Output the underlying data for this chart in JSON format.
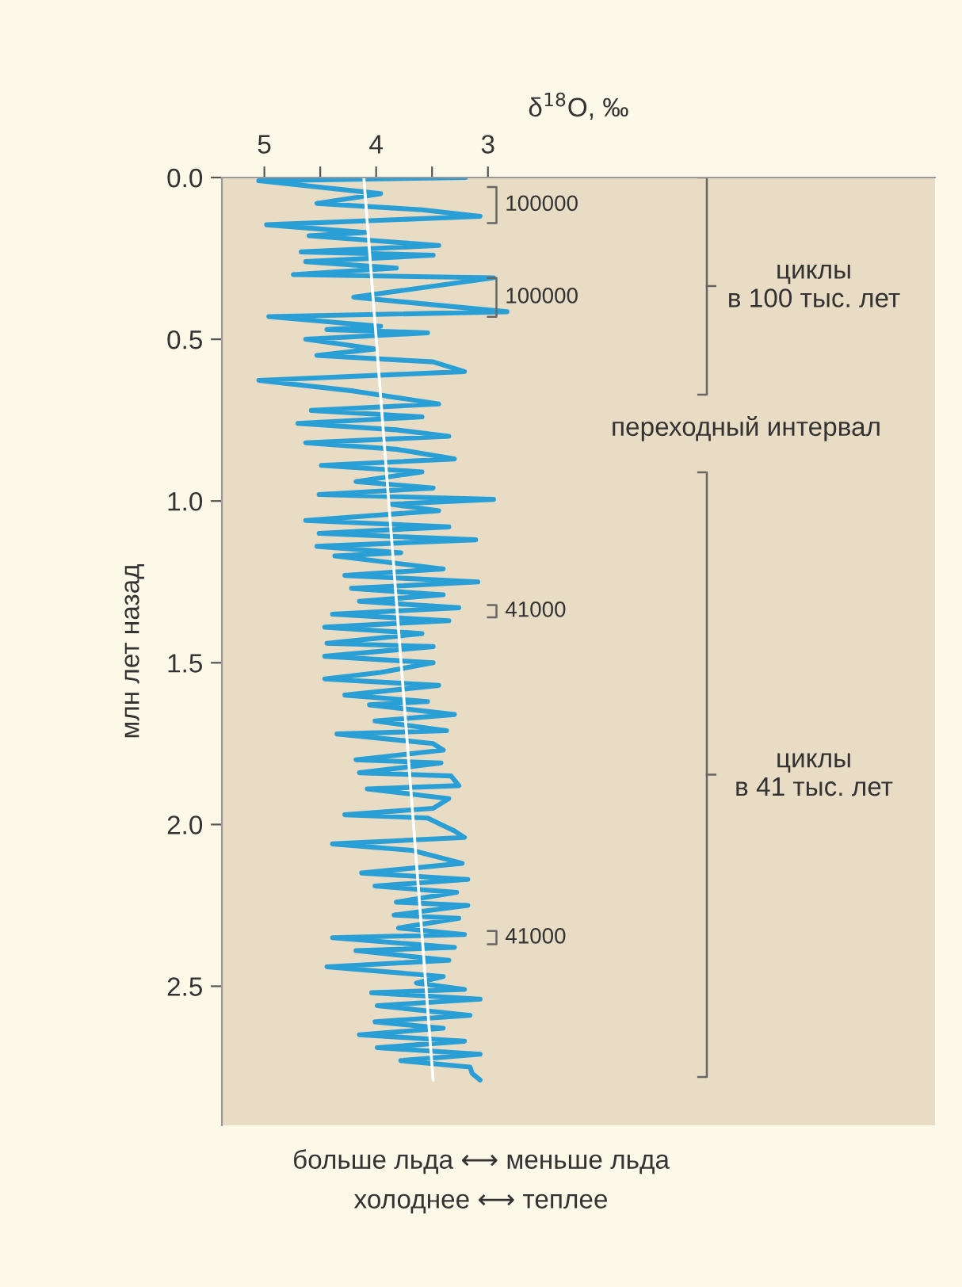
{
  "chart_data": {
    "type": "line",
    "xlabel": "δ$^{18}$O, ‰",
    "ylabel": "млн лет назад",
    "xlim": [
      5.38,
      -1.0
    ],
    "ylim": [
      2.93,
      0
    ],
    "xticks": [
      5,
      {
        "value": 4.5,
        "label": null
      },
      4,
      {
        "value": 3.5,
        "label": null
      },
      3
    ],
    "yticks": [
      {
        "value": 0,
        "label": "0.0"
      },
      {
        "value": 0.5,
        "label": "0.5"
      },
      {
        "value": 1,
        "label": "1.0"
      },
      {
        "value": 1.5,
        "label": "1.5"
      },
      {
        "value": 2,
        "label": "2.0"
      },
      {
        "value": 2.5,
        "label": "2.5"
      }
    ],
    "grid": false,
    "legend": false,
    "marker": "none",
    "line_style": "solid",
    "series": [
      {
        "color": "#2a9fd6",
        "x": [
          3.2,
          5.05,
          3.96,
          4.53,
          3.59,
          3.07,
          4.98,
          4.1,
          4.6,
          3.44,
          4.67,
          3.49,
          4.63,
          3.82,
          4.74,
          2.95,
          4.2,
          2.83,
          4.96,
          3.96,
          4.44,
          3.54,
          4.63,
          4.01,
          4.53,
          3.49,
          3.21,
          5.05,
          4.2,
          3.44,
          4.58,
          3.59,
          4.7,
          3.82,
          3.35,
          4.63,
          3.82,
          3.3,
          4.49,
          3.59,
          4.18,
          3.49,
          4.51,
          2.95,
          3.87,
          3.44,
          4.63,
          3.35,
          4.51,
          3.11,
          4.53,
          3.78,
          4.37,
          3.4,
          4.28,
          3.09,
          4.22,
          3.4,
          4.15,
          3.26,
          4.39,
          3.35,
          4.46,
          3.59,
          4.44,
          3.49,
          4.46,
          3.49,
          3.96,
          4.46,
          3.44,
          4.28,
          3.54,
          4.06,
          3.3,
          4.01,
          3.37,
          4.35,
          3.49,
          3.4,
          4.18,
          3.42,
          4.15,
          3.33,
          3.26,
          4.08,
          3.35,
          3.49,
          4.28,
          3.54,
          3.3,
          3.21,
          4.39,
          3.68,
          3.23,
          4.13,
          3.18,
          4.01,
          3.28,
          3.82,
          3.18,
          3.84,
          3.26,
          3.8,
          3.21,
          4.39,
          3.3,
          4.18,
          3.35,
          4.44,
          3.4,
          3.64,
          3.21,
          4.04,
          3.07,
          3.99,
          3.16,
          4.01,
          3.4,
          4.15,
          3.21,
          3.99,
          3.07,
          3.78,
          3.16,
          3.14,
          3.07
        ],
        "values": [
          0.0,
          0.01,
          0.05,
          0.08,
          0.1,
          0.12,
          0.146,
          0.17,
          0.18,
          0.21,
          0.23,
          0.24,
          0.26,
          0.28,
          0.3,
          0.31,
          0.37,
          0.415,
          0.43,
          0.46,
          0.47,
          0.48,
          0.5,
          0.53,
          0.55,
          0.57,
          0.6,
          0.627,
          0.66,
          0.7,
          0.72,
          0.74,
          0.76,
          0.78,
          0.8,
          0.82,
          0.84,
          0.87,
          0.89,
          0.91,
          0.94,
          0.96,
          0.98,
          0.995,
          1.01,
          1.03,
          1.06,
          1.08,
          1.1,
          1.12,
          1.14,
          1.16,
          1.17,
          1.21,
          1.23,
          1.25,
          1.27,
          1.29,
          1.31,
          1.33,
          1.35,
          1.37,
          1.39,
          1.41,
          1.44,
          1.45,
          1.48,
          1.5,
          1.53,
          1.55,
          1.57,
          1.6,
          1.62,
          1.63,
          1.66,
          1.68,
          1.71,
          1.72,
          1.75,
          1.77,
          1.8,
          1.81,
          1.84,
          1.85,
          1.88,
          1.89,
          1.92,
          1.95,
          1.97,
          1.98,
          2.02,
          2.04,
          2.06,
          2.08,
          2.12,
          2.15,
          2.17,
          2.19,
          2.21,
          2.24,
          2.25,
          2.28,
          2.29,
          2.32,
          2.34,
          2.35,
          2.38,
          2.39,
          2.42,
          2.44,
          2.47,
          2.49,
          2.51,
          2.52,
          2.54,
          2.56,
          2.59,
          2.61,
          2.63,
          2.65,
          2.67,
          2.69,
          2.71,
          2.73,
          2.75,
          2.77,
          2.79
        ]
      },
      {
        "color": "#ffffff",
        "x": [
          4.11,
          3.49
        ],
        "values": [
          0,
          2.79
        ]
      }
    ],
    "annotations": [
      "100000",
      "100000",
      "41000",
      "41000",
      "циклы\nв 100 тыс. лет",
      "переходный интервал",
      "циклы\nв 41 тыс. лет",
      "больше льда ⟷ меньше льда",
      "холоднее ⟷ теплее"
    ]
  }
}
